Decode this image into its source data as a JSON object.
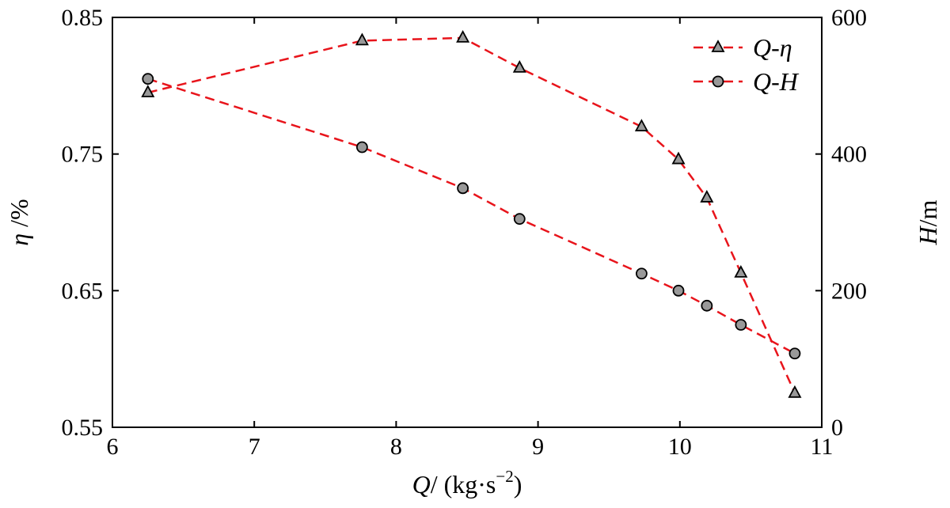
{
  "chart_data": {
    "type": "line",
    "x_label": {
      "var": "Q",
      "sep": "/",
      "unit_open": " (kg·s",
      "unit_exp": "−2",
      "unit_close": ")"
    },
    "y_left_label": {
      "var": "η",
      "unit": " /%"
    },
    "y_right_label": {
      "var": "H",
      "unit": "/m"
    },
    "x_ticks": [
      "6",
      "7",
      "8",
      "9",
      "10",
      "11"
    ],
    "y_left_ticks": [
      "0.55",
      "0.65",
      "0.75",
      "0.85"
    ],
    "y_right_ticks": [
      "0",
      "200",
      "400",
      "600"
    ],
    "xlim": [
      6,
      11
    ],
    "y_left_lim": [
      0.55,
      0.85
    ],
    "y_right_lim": [
      0,
      600
    ],
    "grid": false,
    "legend_position": "top-right",
    "series": [
      {
        "name": "Q-η",
        "axis": "left",
        "marker": "triangle",
        "color": "#e8141b",
        "x": [
          6.25,
          7.76,
          8.47,
          8.87,
          9.73,
          9.99,
          10.19,
          10.43,
          10.81
        ],
        "y": [
          0.795,
          0.833,
          0.835,
          0.813,
          0.77,
          0.746,
          0.718,
          0.663,
          0.575
        ]
      },
      {
        "name": "Q-H",
        "axis": "right",
        "marker": "circle",
        "color": "#e8141b",
        "x": [
          6.25,
          7.76,
          8.47,
          8.87,
          9.73,
          9.99,
          10.19,
          10.43,
          10.81
        ],
        "y": [
          510,
          410,
          350,
          305,
          225,
          200,
          178,
          150,
          108
        ]
      }
    ]
  }
}
